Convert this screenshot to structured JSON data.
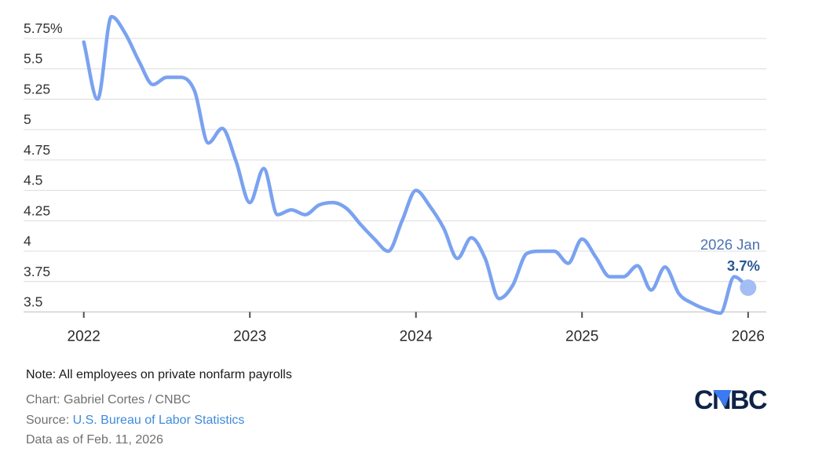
{
  "chart_data": {
    "type": "line",
    "unit": "percent",
    "x": [
      "2022-01",
      "2022-02",
      "2022-03",
      "2022-04",
      "2022-05",
      "2022-06",
      "2022-07",
      "2022-08",
      "2022-09",
      "2022-10",
      "2022-11",
      "2022-12",
      "2023-01",
      "2023-02",
      "2023-03",
      "2023-04",
      "2023-05",
      "2023-06",
      "2023-07",
      "2023-08",
      "2023-09",
      "2023-10",
      "2023-11",
      "2023-12",
      "2024-01",
      "2024-02",
      "2024-03",
      "2024-04",
      "2024-05",
      "2024-06",
      "2024-07",
      "2024-08",
      "2024-09",
      "2024-10",
      "2024-11",
      "2024-12",
      "2025-01",
      "2025-02",
      "2025-03",
      "2025-04",
      "2025-05",
      "2025-06",
      "2025-07",
      "2025-08",
      "2025-09",
      "2025-10",
      "2025-11",
      "2025-12",
      "2026-01"
    ],
    "values": [
      5.72,
      5.25,
      5.93,
      5.79,
      5.56,
      5.37,
      5.43,
      5.43,
      5.32,
      4.89,
      5.01,
      4.74,
      4.4,
      4.68,
      4.3,
      4.34,
      4.3,
      4.38,
      4.4,
      4.35,
      4.22,
      4.1,
      4.0,
      4.25,
      4.5,
      4.37,
      4.19,
      3.94,
      4.11,
      3.94,
      3.61,
      3.72,
      3.98,
      4.0,
      4.0,
      3.9,
      4.1,
      3.95,
      3.79,
      3.79,
      3.88,
      3.68,
      3.87,
      3.65,
      3.57,
      3.52,
      3.49,
      3.79,
      3.7
    ],
    "x_ticks": [
      {
        "label": "2022",
        "index": 0
      },
      {
        "label": "2023",
        "index": 12
      },
      {
        "label": "2024",
        "index": 24
      },
      {
        "label": "2025",
        "index": 36
      },
      {
        "label": "2026",
        "index": 48
      }
    ],
    "y_ticks": [
      {
        "value": 5.75,
        "label": "5.75%"
      },
      {
        "value": 5.5,
        "label": "5.5"
      },
      {
        "value": 5.25,
        "label": "5.25"
      },
      {
        "value": 5.0,
        "label": "5"
      },
      {
        "value": 4.75,
        "label": "4.75"
      },
      {
        "value": 4.5,
        "label": "4.5"
      },
      {
        "value": 4.25,
        "label": "4.25"
      },
      {
        "value": 4.0,
        "label": "4"
      },
      {
        "value": 3.75,
        "label": "3.75"
      },
      {
        "value": 3.5,
        "label": "3.5"
      }
    ],
    "ylim": [
      3.5,
      5.75
    ],
    "grid": true,
    "legend_position": "none",
    "end_annotation": {
      "label": "2026 Jan",
      "value_label": "3.7%",
      "value": 3.7
    },
    "colors": {
      "line": "#7aa2f0",
      "end_dot": "#a3bdf5",
      "annotation_label": "#4a72b2",
      "annotation_value": "#2a5795",
      "grid": "#dcdcdc",
      "axis_baseline": "#c9c9c9",
      "tick": "#4f4f4f",
      "y_label_text": "#333333",
      "x_label_text": "#2a2a2a"
    }
  },
  "footer": {
    "note": "Note: All employees on private nonfarm payrolls",
    "credit": "Chart: Gabriel Cortes / CNBC",
    "source_prefix": "Source:",
    "source_link": "U.S. Bureau of Labor Statistics",
    "as_of": "Data as of Feb. 11, 2026"
  },
  "logo": {
    "text": "CNBC",
    "navy": "#0f2347",
    "blue": "#3b7af0"
  }
}
